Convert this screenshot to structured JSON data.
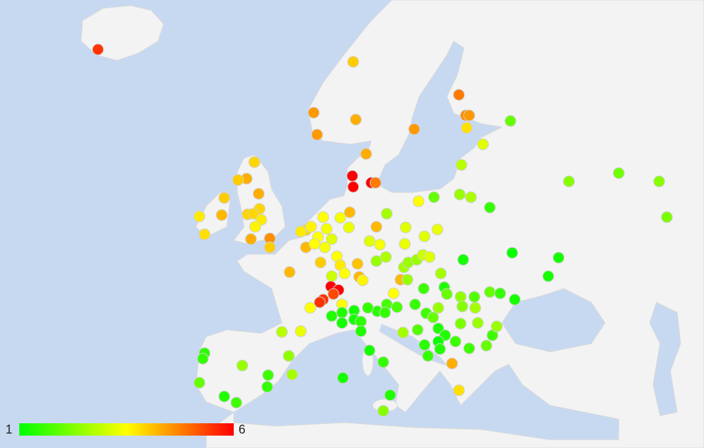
{
  "chart_data": {
    "type": "map",
    "lon": [
      -22.2,
      7.5,
      2.9,
      3.3,
      7.8,
      9.0,
      7.4,
      7.5,
      9.6,
      10.1,
      14.6,
      19.8,
      20.6,
      21.0,
      20.7,
      22.6,
      25.8,
      20.1,
      32.6,
      38.4,
      43.1,
      44.0,
      -4.0,
      -4.9,
      -5.9,
      -3.5,
      -7.5,
      -10.4,
      -7.8,
      -9.8,
      -4.8,
      -3.4,
      -4.1,
      -3.2,
      -3.9,
      -4.4,
      -2.2,
      -2.2,
      0.1,
      2.0,
      2.0,
      2.6,
      3.4,
      4.4,
      5.0,
      4.0,
      6.0,
      7.0,
      7.1,
      4.2,
      5.6,
      3.7,
      6.0,
      6.5,
      5.0,
      8.0,
      8.2,
      8.6,
      4.9,
      5.8,
      5.2,
      4.0,
      3.6,
      6.2,
      2.5,
      9.4,
      10.2,
      10.6,
      11.4,
      13.6,
      13.5,
      15.1,
      16.9,
      19.9,
      21.2,
      23.4,
      15.8,
      17.3,
      10.2,
      11.3,
      13.4,
      13.9,
      14.9,
      15.6,
      16.4,
      13.0,
      13.8,
      12.2,
      15.7,
      17.7,
      18.1,
      20.3,
      18.4,
      20.0,
      21.6,
      23.4,
      24.6,
      26.3,
      26.0,
      31.4,
      30.2,
      14.7,
      17.4,
      16.0,
      16.8,
      20.2,
      21.7,
      11.4,
      10.3,
      11.2,
      12.6,
      9.2,
      7.6,
      6.2,
      5.0,
      6.2,
      7.6,
      8.4,
      8.4,
      9.4,
      11.0,
      6.3,
      11.8,
      11.0,
      13.3,
      15.0,
      17.4,
      18.2,
      20.0,
      22.0,
      23.7,
      24.2,
      15.8,
      17.4,
      19.4,
      17.6,
      21.0,
      23.0,
      16.2,
      19.0,
      19.8,
      -0.8,
      1.4,
      0.0,
      0.4,
      -2.4,
      -2.5,
      -5.4,
      -9.8,
      -10.0,
      -10.4,
      -7.5,
      -6.1,
      1.4,
      3.0
    ],
    "lat": [
      64.0,
      63.1,
      59.4,
      57.8,
      58.9,
      56.4,
      54.8,
      54.0,
      54.3,
      54.3,
      58.2,
      60.7,
      59.2,
      59.2,
      58.3,
      57.1,
      58.8,
      55.6,
      54.4,
      55.0,
      54.4,
      51.8,
      55.8,
      54.6,
      54.5,
      53.5,
      53.2,
      51.85,
      51.95,
      50.55,
      52.0,
      52.4,
      52.05,
      51.6,
      51.1,
      50.2,
      50.25,
      49.6,
      47.8,
      50.85,
      49.6,
      51.1,
      50.35,
      50.95,
      50.2,
      51.8,
      51.75,
      51.05,
      52.15,
      49.6,
      48.95,
      48.5,
      48.3,
      47.7,
      47.5,
      48.4,
      47.45,
      47.2,
      46.75,
      46.5,
      46.2,
      45.8,
      45.6,
      45.45,
      45.2,
      50.05,
      51.1,
      49.8,
      52.05,
      51.05,
      49.85,
      52.95,
      53.25,
      53.45,
      53.25,
      52.5,
      50.4,
      50.9,
      48.6,
      48.9,
      48.15,
      48.5,
      48.7,
      49.05,
      48.9,
      47.25,
      47.25,
      46.25,
      46.6,
      47.7,
      46.7,
      48.7,
      46.2,
      46.0,
      46.0,
      46.35,
      46.25,
      45.8,
      49.2,
      48.85,
      47.5,
      45.45,
      45.2,
      44.8,
      44.5,
      45.3,
      45.2,
      45.45,
      44.95,
      44.85,
      45.25,
      45.2,
      45.0,
      44.85,
      44.6,
      44.1,
      44.35,
      44.2,
      43.5,
      42.1,
      41.25,
      40.1,
      38.85,
      37.7,
      43.4,
      43.6,
      43.7,
      43.2,
      44.05,
      44.1,
      43.2,
      43.85,
      42.5,
      42.75,
      42.75,
      42.2,
      42.25,
      42.45,
      41.7,
      41.15,
      39.2,
      43.45,
      43.5,
      41.7,
      40.35,
      40.3,
      39.45,
      41.0,
      41.9,
      41.5,
      39.75,
      38.75,
      38.3,
      50.75,
      49.85
    ],
    "values": [
      5.5,
      4,
      4.5,
      4.5,
      4.3,
      4.3,
      6,
      6,
      6,
      4.8,
      4.5,
      4.8,
      4.6,
      4.5,
      3.8,
      3.2,
      2,
      2.8,
      2.3,
      2.1,
      2.3,
      2.2,
      3.9,
      4.3,
      4,
      4.3,
      4,
      3.7,
      4.2,
      3.8,
      3.9,
      3.9,
      3.9,
      3.7,
      3.6,
      4.3,
      4.6,
      4,
      4.2,
      3.9,
      4.2,
      3.6,
      3.5,
      3.4,
      3.2,
      3.5,
      3.4,
      3.3,
      4.2,
      3.4,
      3.5,
      4,
      3.7,
      3.5,
      3,
      4.1,
      4.2,
      3.6,
      6,
      6,
      5.3,
      5.5,
      5.5,
      3.5,
      3.5,
      3.2,
      4.2,
      3.4,
      2.6,
      3.2,
      3.3,
      3.5,
      2,
      2.5,
      2.7,
      1.5,
      3.2,
      3.3,
      2.5,
      2.7,
      2.6,
      2.5,
      2.5,
      3,
      3.2,
      4.2,
      2.5,
      3.5,
      1.6,
      2.6,
      1.3,
      1.2,
      2,
      2.4,
      1.8,
      2,
      1.5,
      1.2,
      1.1,
      1.2,
      1.2,
      1.5,
      2.5,
      1.6,
      2,
      2.3,
      2.6,
      1.7,
      1.4,
      1.5,
      1.7,
      1.5,
      1.2,
      1.3,
      1.3,
      1.2,
      1.2,
      1.4,
      1.3,
      1.2,
      1.5,
      1.2,
      1.3,
      2.3,
      2.6,
      1.8,
      1.3,
      1.3,
      2.2,
      2.5,
      1.6,
      2.5,
      1.4,
      1.1,
      1.6,
      1.3,
      1.6,
      2,
      1.5,
      4.3,
      3.8,
      2.8,
      3.3,
      2.4,
      2.6,
      1.6,
      1.5,
      2.5,
      1.4,
      1.5,
      2,
      1.3,
      1.6,
      3.7,
      3.5
    ],
    "vlim": [
      1,
      6
    ],
    "colors": [
      "#00ff00",
      "#ffff00",
      "#ff0000"
    ]
  }
}
